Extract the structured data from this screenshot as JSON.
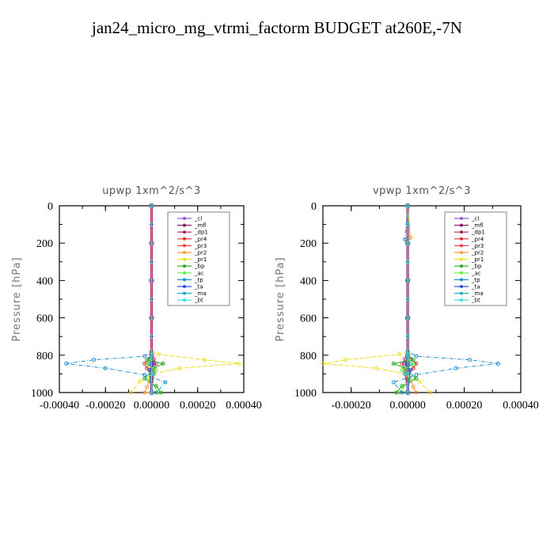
{
  "title": "jan24_micro_mg_vtrmi_factorm  BUDGET at260E,-7N",
  "colors": {
    "_cl": "#9b59d0",
    "_mfl": "#8b1a6b",
    "_dp1": "#b0205a",
    "_pr4": "#e03030",
    "_pr3": "#ff4040",
    "_pr2": "#ff9a40",
    "_pr1": "#f0e020",
    "_bp": "#22aa22",
    "_ac": "#66ee44",
    "_tp": "#1f8fd0",
    "_ta": "#3050e0",
    "_ma": "#20b0c0",
    "_bt": "#30e0e0"
  },
  "chart_data": [
    {
      "type": "line",
      "title": "upwp   1xm^2/s^3",
      "ylabel": "Pressure [hPa]",
      "xlim": [
        -0.0004,
        0.0004
      ],
      "ylim": [
        1000,
        0
      ],
      "xticks": [
        "-0.00040",
        "-0.00020",
        "0.00000",
        "0.00020",
        "0.00040"
      ],
      "yticks": [
        "0",
        "200",
        "400",
        "600",
        "800",
        "1000"
      ],
      "legend_position": "top-right",
      "series": [
        {
          "name": "_cl",
          "x": [
            0,
            0,
            0,
            0,
            0,
            0,
            0,
            0
          ],
          "y": [
            0,
            200,
            400,
            600,
            800,
            850,
            900,
            1000
          ]
        },
        {
          "name": "_mfl",
          "x": [
            0,
            0,
            0,
            0,
            0,
            0,
            0,
            0
          ],
          "y": [
            0,
            200,
            400,
            600,
            800,
            850,
            900,
            1000
          ]
        },
        {
          "name": "_dp1",
          "x": [
            0,
            0,
            0,
            0,
            0,
            0,
            0,
            0
          ],
          "y": [
            0,
            200,
            400,
            600,
            800,
            850,
            900,
            1000
          ]
        },
        {
          "name": "_pr4",
          "x": [
            0,
            0,
            -1e-05,
            -3e-05,
            -2e-05,
            1e-05,
            0
          ],
          "y": [
            0,
            780,
            820,
            845,
            870,
            900,
            1000
          ]
        },
        {
          "name": "_pr3",
          "x": [
            0,
            0,
            1e-05,
            2e-05,
            1e-05,
            0
          ],
          "y": [
            0,
            780,
            820,
            845,
            880,
            1000
          ]
        },
        {
          "name": "_pr2",
          "x": [
            0,
            0,
            -1e-05,
            -2e-05,
            -3e-05,
            0
          ],
          "y": [
            0,
            900,
            940,
            970,
            1000,
            1000
          ]
        },
        {
          "name": "_pr1",
          "x": [
            0,
            0,
            3e-05,
            0.00023,
            0.00038,
            0.00012,
            1e-05,
            -5e-05,
            -9e-05
          ],
          "y": [
            0,
            780,
            795,
            825,
            845,
            870,
            900,
            940,
            1000
          ]
        },
        {
          "name": "_bp",
          "x": [
            0,
            0,
            -2e-05,
            5e-05,
            1e-05,
            -3e-05,
            2e-05,
            4e-05
          ],
          "y": [
            0,
            800,
            825,
            845,
            870,
            925,
            965,
            1000
          ]
        },
        {
          "name": "_ac",
          "x": [
            0,
            0,
            -2e-05,
            2e-05,
            -1e-05,
            3e-05
          ],
          "y": [
            0,
            820,
            850,
            880,
            930,
            1000
          ]
        },
        {
          "name": "_tp",
          "x": [
            0,
            0,
            -3e-05,
            -0.00025,
            -0.00037,
            -0.0002,
            -3e-05,
            6e-05,
            2e-05
          ],
          "y": [
            0,
            780,
            805,
            825,
            845,
            870,
            905,
            945,
            1000
          ]
        },
        {
          "name": "_ta",
          "x": [
            0,
            0,
            1e-05,
            -1e-05,
            0
          ],
          "y": [
            0,
            800,
            845,
            880,
            1000
          ]
        },
        {
          "name": "_ma",
          "x": [
            0,
            0,
            -1e-05,
            1e-05,
            0
          ],
          "y": [
            0,
            800,
            845,
            900,
            1000
          ]
        },
        {
          "name": "_bt",
          "x": [
            0,
            0,
            0,
            0,
            0,
            0,
            0,
            0,
            0,
            0,
            0
          ],
          "y": [
            0,
            100,
            200,
            300,
            400,
            500,
            600,
            700,
            800,
            900,
            1000
          ]
        }
      ]
    },
    {
      "type": "line",
      "title": "vpwp   1xm^2/s^3",
      "ylabel": "Pressure [hPa]",
      "xlim": [
        -0.0003,
        0.0004
      ],
      "ylim": [
        1000,
        0
      ],
      "xticks": [
        "-0.00020",
        "0.00000",
        "0.00020",
        "0.00040"
      ],
      "yticks": [
        "0",
        "200",
        "400",
        "600",
        "800",
        "1000"
      ],
      "legend_position": "top-right",
      "series": [
        {
          "name": "_cl",
          "x": [
            0,
            0,
            0,
            0,
            0,
            0,
            0,
            0
          ],
          "y": [
            0,
            200,
            400,
            600,
            800,
            850,
            900,
            1000
          ]
        },
        {
          "name": "_mfl",
          "x": [
            0,
            0,
            0,
            0,
            0,
            0,
            0,
            0
          ],
          "y": [
            0,
            200,
            400,
            600,
            800,
            850,
            900,
            1000
          ]
        },
        {
          "name": "_dp1",
          "x": [
            0,
            0,
            0,
            0,
            0,
            0,
            0,
            0
          ],
          "y": [
            0,
            200,
            400,
            600,
            800,
            850,
            900,
            1000
          ]
        },
        {
          "name": "_pr4",
          "x": [
            0,
            0,
            1e-05,
            3e-05,
            2e-05,
            -1e-05,
            0
          ],
          "y": [
            0,
            780,
            820,
            845,
            870,
            900,
            1000
          ]
        },
        {
          "name": "_pr3",
          "x": [
            0,
            0,
            -1e-05,
            -2e-05,
            -1e-05,
            0
          ],
          "y": [
            0,
            780,
            820,
            845,
            880,
            1000
          ]
        },
        {
          "name": "_pr2",
          "x": [
            0,
            1e-05,
            0,
            0,
            1e-05,
            2e-05,
            3e-05
          ],
          "y": [
            0,
            170,
            200,
            900,
            940,
            970,
            1000
          ]
        },
        {
          "name": "_pr1",
          "x": [
            0,
            0,
            -3e-05,
            -0.00022,
            -0.0003,
            -0.00011,
            -1e-05,
            4e-05,
            8e-05
          ],
          "y": [
            0,
            780,
            795,
            825,
            845,
            870,
            900,
            940,
            1000
          ]
        },
        {
          "name": "_bp",
          "x": [
            0,
            0,
            2e-05,
            -5e-05,
            -1e-05,
            3e-05,
            -2e-05,
            -4e-05
          ],
          "y": [
            0,
            800,
            825,
            845,
            870,
            925,
            965,
            1000
          ]
        },
        {
          "name": "_ac",
          "x": [
            0,
            0,
            2e-05,
            -2e-05,
            1e-05,
            -3e-05
          ],
          "y": [
            0,
            820,
            850,
            880,
            930,
            1000
          ]
        },
        {
          "name": "_tp",
          "x": [
            0,
            -1e-05,
            0,
            0,
            3e-05,
            0.00022,
            0.00032,
            0.00017,
            3e-05,
            -5e-05,
            -2e-05
          ],
          "y": [
            0,
            180,
            200,
            780,
            805,
            825,
            845,
            870,
            905,
            945,
            1000
          ]
        },
        {
          "name": "_ta",
          "x": [
            0,
            0,
            -1e-05,
            1e-05,
            0
          ],
          "y": [
            0,
            800,
            845,
            880,
            1000
          ]
        },
        {
          "name": "_ma",
          "x": [
            0,
            0,
            1e-05,
            -1e-05,
            0
          ],
          "y": [
            0,
            800,
            845,
            900,
            1000
          ]
        },
        {
          "name": "_bt",
          "x": [
            0,
            0,
            0,
            0,
            0,
            0,
            0,
            0,
            0,
            0,
            0
          ],
          "y": [
            0,
            100,
            200,
            300,
            400,
            500,
            600,
            700,
            800,
            900,
            1000
          ]
        }
      ]
    }
  ]
}
